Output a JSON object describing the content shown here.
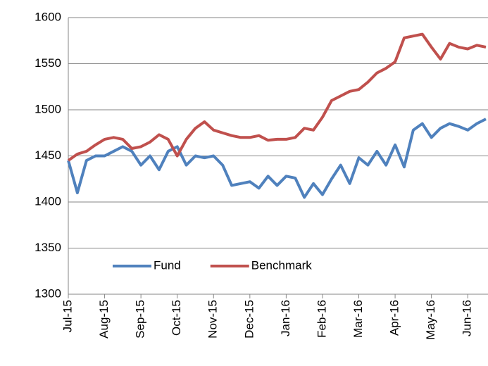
{
  "chart_data": {
    "type": "line",
    "categories": [
      "Jul-15",
      null,
      null,
      null,
      "Aug-15",
      null,
      null,
      null,
      "Sep-15",
      null,
      null,
      null,
      "Oct-15",
      null,
      null,
      null,
      "Nov-15",
      null,
      null,
      null,
      "Dec-15",
      null,
      null,
      null,
      "Jan-16",
      null,
      null,
      null,
      "Feb-16",
      null,
      null,
      null,
      "Mar-16",
      null,
      null,
      null,
      "Apr-16",
      null,
      null,
      null,
      "May-16",
      null,
      null,
      null,
      "Jun-16",
      null,
      null
    ],
    "series": [
      {
        "name": "Fund",
        "color": "#4f81bd",
        "values": [
          1445,
          1410,
          1445,
          1450,
          1450,
          1455,
          1460,
          1455,
          1440,
          1450,
          1435,
          1455,
          1460,
          1440,
          1450,
          1448,
          1450,
          1440,
          1418,
          1420,
          1422,
          1415,
          1428,
          1418,
          1428,
          1426,
          1405,
          1420,
          1408,
          1425,
          1440,
          1420,
          1448,
          1440,
          1455,
          1440,
          1462,
          1438,
          1478,
          1485,
          1470,
          1480,
          1485,
          1482,
          1478,
          1485,
          1490
        ]
      },
      {
        "name": "Benchmark",
        "color": "#c0504d",
        "values": [
          1445,
          1452,
          1455,
          1462,
          1468,
          1470,
          1468,
          1458,
          1460,
          1465,
          1473,
          1468,
          1450,
          1468,
          1480,
          1487,
          1478,
          1475,
          1472,
          1470,
          1470,
          1472,
          1467,
          1468,
          1468,
          1470,
          1480,
          1478,
          1492,
          1510,
          1515,
          1520,
          1522,
          1530,
          1540,
          1545,
          1552,
          1578,
          1580,
          1582,
          1568,
          1555,
          1572,
          1568,
          1566,
          1570,
          1568
        ]
      }
    ],
    "ylim": [
      1300,
      1600
    ],
    "yticks": [
      1300,
      1350,
      1400,
      1450,
      1500,
      1550,
      1600
    ],
    "grid": true,
    "legend": "bottom-left"
  }
}
